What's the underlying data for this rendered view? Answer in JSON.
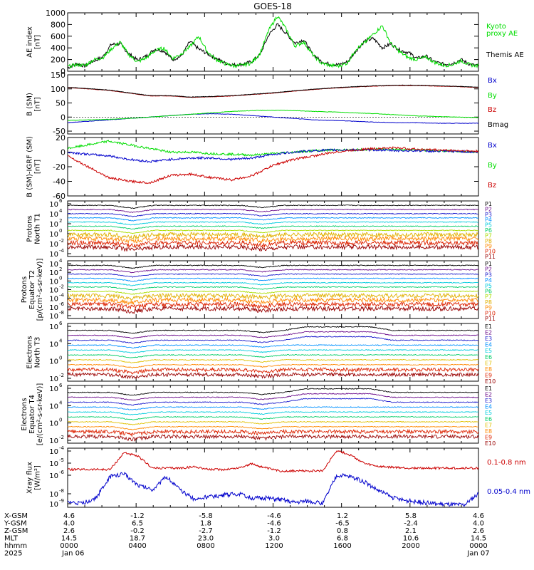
{
  "title": "GOES-18",
  "colors": {
    "black": "#000000",
    "green": "#00dd00",
    "blue": "#0000cc",
    "red": "#cc0000",
    "darkred": "#990000"
  },
  "chart_data": [
    {
      "type": "line",
      "id": "ae",
      "ylabel": [
        "AE index",
        "[nT]"
      ],
      "ylim": [
        0,
        1000
      ],
      "yticks": [
        "0",
        "200",
        "400",
        "600",
        "800",
        "1000"
      ],
      "yvals": [
        0,
        200,
        400,
        600,
        800,
        1000
      ],
      "legend": [
        {
          "text": "Kyoto",
          "color": "#00dd00"
        },
        {
          "text": "proxy AE",
          "color": "#00dd00"
        },
        {
          "text": "Themis AE",
          "color": "#000000"
        }
      ],
      "series": [
        {
          "name": "Themis AE",
          "color": "#000000",
          "values": [
            60,
            130,
            90,
            180,
            240,
            460,
            470,
            300,
            190,
            260,
            380,
            350,
            200,
            260,
            510,
            380,
            300,
            220,
            140,
            110,
            120,
            160,
            280,
            620,
            800,
            650,
            480,
            540,
            300,
            170,
            120,
            110,
            160,
            350,
            520,
            560,
            400,
            470,
            360,
            320,
            220,
            260,
            160,
            120,
            130,
            200,
            120,
            90
          ]
        },
        {
          "name": "Kyoto proxy AE",
          "color": "#00dd00",
          "values": [
            80,
            110,
            100,
            200,
            230,
            380,
            500,
            280,
            160,
            230,
            350,
            400,
            220,
            300,
            420,
            600,
            330,
            200,
            130,
            90,
            100,
            140,
            300,
            700,
            950,
            720,
            430,
            500,
            290,
            140,
            100,
            90,
            140,
            380,
            490,
            640,
            780,
            470,
            330,
            230,
            200,
            240,
            150,
            100,
            110,
            180,
            110,
            90
          ]
        }
      ]
    },
    {
      "type": "line",
      "id": "bsm",
      "ylabel": [
        "B (SM)",
        "[nT]"
      ],
      "ylim": [
        -60,
        150
      ],
      "yticks": [
        "-50",
        "0",
        "50",
        "100",
        "150"
      ],
      "yvals": [
        -50,
        0,
        50,
        100,
        150
      ],
      "legend": [
        {
          "text": "Bx",
          "color": "#0000cc"
        },
        {
          "text": "By",
          "color": "#00dd00"
        },
        {
          "text": "Bz",
          "color": "#cc0000"
        },
        {
          "text": "Bmag",
          "color": "#000000"
        }
      ],
      "series": [
        {
          "name": "Bz",
          "color": "#cc0000",
          "values": [
            105,
            100,
            95,
            85,
            75,
            75,
            70,
            72,
            75,
            80,
            85,
            92,
            98,
            103,
            107,
            110,
            112,
            112,
            110,
            108,
            105
          ]
        },
        {
          "name": "Bmag",
          "color": "#000000",
          "values": [
            106,
            101,
            96,
            86,
            76,
            76,
            71,
            73,
            76,
            81,
            86,
            93,
            99,
            104,
            108,
            111,
            113,
            113,
            111,
            109,
            106
          ]
        },
        {
          "name": "Bx",
          "color": "#0000cc",
          "values": [
            -20,
            -15,
            -10,
            -5,
            0,
            5,
            10,
            12,
            10,
            5,
            0,
            -5,
            -10,
            -12,
            -15,
            -18,
            -20,
            -20,
            -22,
            -22,
            -22
          ]
        },
        {
          "name": "By",
          "color": "#00dd00",
          "values": [
            -12,
            -10,
            -8,
            -5,
            0,
            5,
            10,
            15,
            20,
            23,
            24,
            23,
            20,
            18,
            15,
            12,
            8,
            4,
            2,
            0,
            -2
          ]
        }
      ]
    },
    {
      "type": "line",
      "id": "bdiff",
      "ylabel": [
        "B (SM)-IGRF (SM)",
        "[nT]"
      ],
      "ylim": [
        -60,
        20
      ],
      "yticks": [
        "-60",
        "-40",
        "-20",
        "0",
        "20"
      ],
      "yvals": [
        -60,
        -40,
        -20,
        0,
        20
      ],
      "legend": [
        {
          "text": "Bx",
          "color": "#0000cc"
        },
        {
          "text": "By",
          "color": "#00dd00"
        },
        {
          "text": "Bz",
          "color": "#cc0000"
        }
      ],
      "series": [
        {
          "name": "By",
          "color": "#00dd00",
          "values": [
            5,
            10,
            15,
            10,
            5,
            0,
            0,
            -2,
            -3,
            -4,
            -2,
            0,
            2,
            3,
            3,
            4,
            4,
            3,
            2,
            1,
            0
          ]
        },
        {
          "name": "Bx",
          "color": "#0000cc",
          "values": [
            0,
            -3,
            -5,
            -10,
            -13,
            -10,
            -8,
            -8,
            -10,
            -8,
            -3,
            0,
            2,
            3,
            3,
            3,
            2,
            2,
            1,
            1,
            0
          ]
        },
        {
          "name": "Bz",
          "color": "#cc0000",
          "values": [
            -5,
            -20,
            -35,
            -40,
            -42,
            -32,
            -30,
            -35,
            -38,
            -32,
            -18,
            -10,
            -5,
            0,
            3,
            5,
            6,
            4,
            3,
            2,
            1
          ]
        }
      ]
    }
  ],
  "particle_panels": [
    {
      "id": "pn",
      "ylabel": [
        "Protons",
        "North T1"
      ],
      "ticks": [
        "10",
        "10",
        "10",
        "10",
        "10",
        "10"
      ],
      "exps": [
        "6",
        "4",
        "2",
        "0",
        "-2",
        "-4"
      ],
      "channels": [
        "P1",
        "P2",
        "P3",
        "P4",
        "P5",
        "P6",
        "P7",
        "P8",
        "P9",
        "P10",
        "P11"
      ]
    },
    {
      "id": "pe",
      "ylabel": [
        "Protons",
        "Equator T2",
        "[p/(cm²-s-sr-keV)]"
      ],
      "ticks": [
        "10",
        "10",
        "10",
        "10",
        "10",
        "10",
        "10"
      ],
      "exps": [
        "4",
        "2",
        "0",
        "-2",
        "-4",
        "-6",
        "-8"
      ],
      "channels": [
        "P1",
        "P2",
        "P3",
        "P4",
        "P5",
        "P6",
        "P7",
        "P8",
        "P9",
        "P10",
        "P11"
      ]
    },
    {
      "id": "en",
      "ylabel": [
        "Electrons",
        "North T3"
      ],
      "ticks": [
        "10",
        "10",
        "10",
        "10"
      ],
      "exps": [
        "6",
        "4",
        "0",
        "-2"
      ],
      "channels": [
        "E1",
        "E2",
        "E3",
        "E4",
        "E5",
        "E6",
        "E7",
        "E8",
        "E9",
        "E10"
      ]
    },
    {
      "id": "ee",
      "ylabel": [
        "Electrons",
        "Equator T4",
        "[e/(cm²-s-sr-keV)]"
      ],
      "ticks": [
        "10",
        "10",
        "10",
        "10"
      ],
      "exps": [
        "6",
        "4",
        "0",
        "-2"
      ],
      "channels": [
        "E1",
        "E2",
        "E3",
        "E4",
        "E5",
        "E6",
        "E7",
        "E8",
        "E9",
        "E10"
      ]
    }
  ],
  "xray": {
    "ylabel": [
      "Xray flux",
      "[W/m²]"
    ],
    "ticks": [
      "10",
      "10",
      "10",
      "10",
      "10"
    ],
    "exps": [
      "-4",
      "-5",
      "-6",
      "-8",
      "-9"
    ],
    "legend": [
      {
        "text": "0.1-0.8 nm",
        "color": "#cc0000"
      },
      {
        "text": "0.05-0.4 nm",
        "color": "#0000cc"
      }
    ]
  },
  "xaxis": {
    "rows": [
      {
        "label": "X-GSM",
        "values": [
          "4.6",
          "-1.2",
          "-5.8",
          "-4.6",
          "1.2",
          "5.8",
          "4.6"
        ]
      },
      {
        "label": "Y-GSM",
        "values": [
          "4.0",
          "6.5",
          "1.8",
          "-4.6",
          "-6.5",
          "-2.4",
          "4.0"
        ]
      },
      {
        "label": "Z-GSM",
        "values": [
          "2.6",
          "-0.2",
          "-2.7",
          "-1.2",
          "0.8",
          "2.1",
          "2.6"
        ]
      },
      {
        "label": "MLT",
        "values": [
          "14.5",
          "18.7",
          "23.0",
          "3.0",
          "6.8",
          "10.6",
          "14.5"
        ]
      },
      {
        "label": "hhmm",
        "values": [
          "0000",
          "0400",
          "0800",
          "1200",
          "1600",
          "2000",
          "0000"
        ]
      },
      {
        "label": "2025",
        "values": [
          "Jan 06",
          "",
          "",
          "",
          "",
          "",
          "Jan 07"
        ]
      }
    ]
  }
}
